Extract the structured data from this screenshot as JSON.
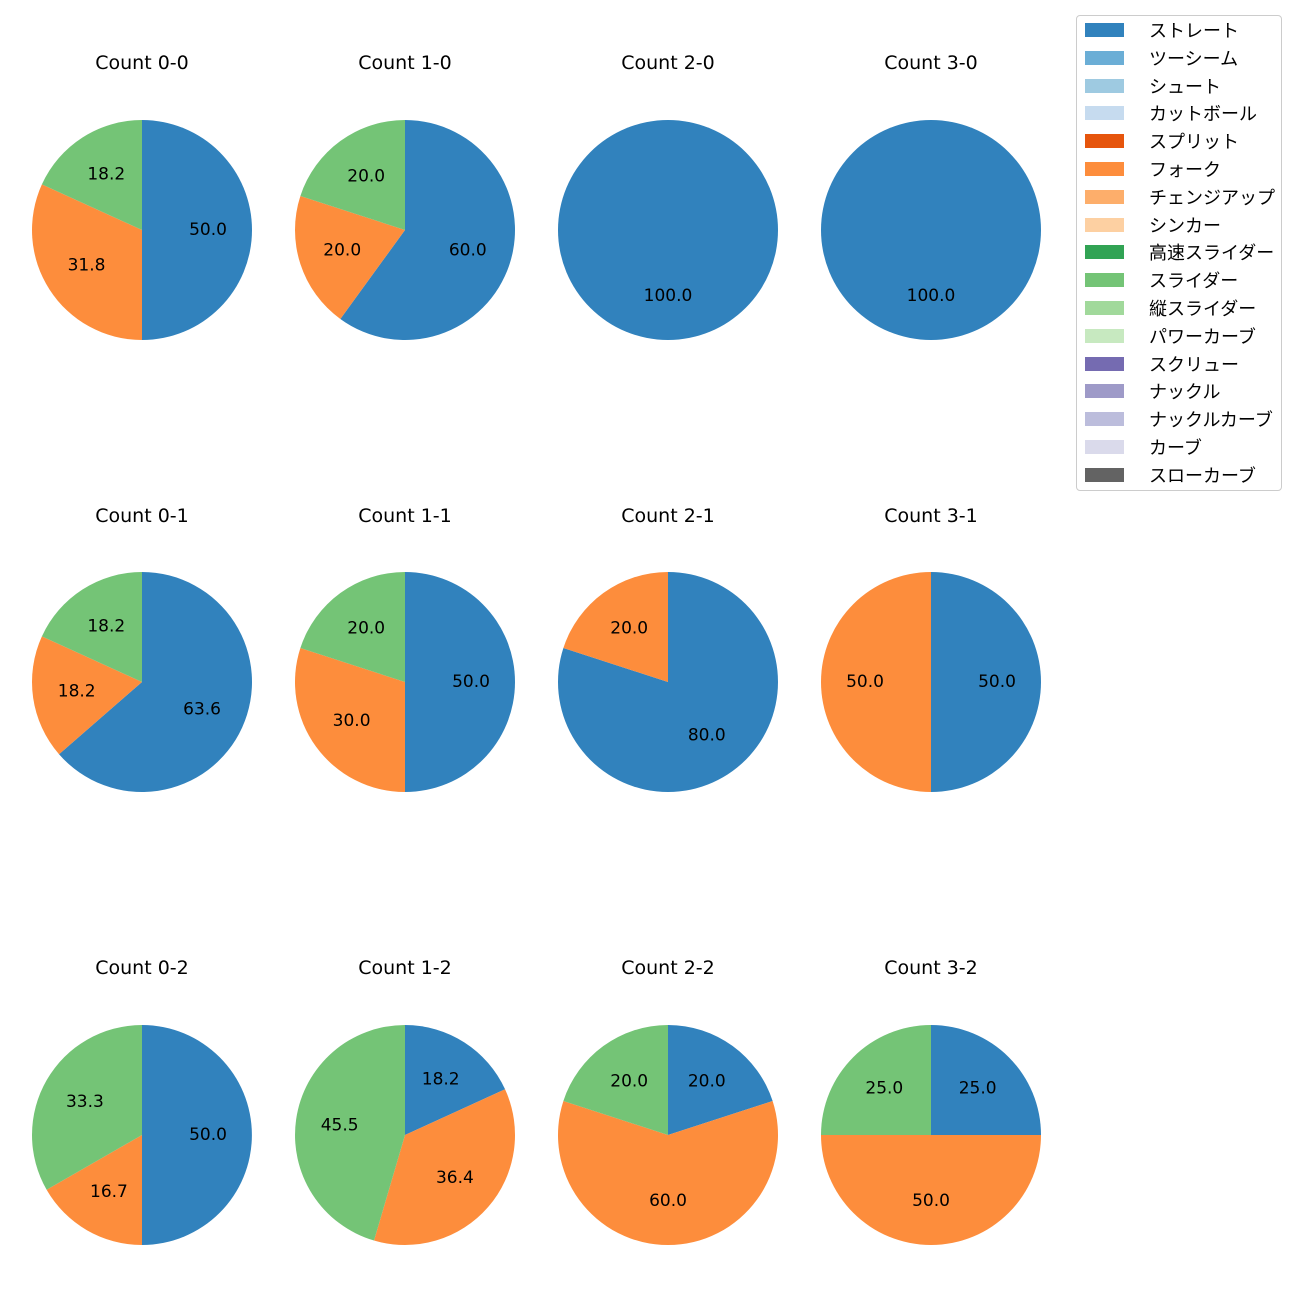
{
  "chart_data": {
    "type": "pie",
    "pitch_types": [
      {
        "name": "ストレート",
        "color": "#3182bd"
      },
      {
        "name": "ツーシーム",
        "color": "#6baed6"
      },
      {
        "name": "シュート",
        "color": "#9ecae1"
      },
      {
        "name": "カットボール",
        "color": "#c6dbef"
      },
      {
        "name": "スプリット",
        "color": "#e6550d"
      },
      {
        "name": "フォーク",
        "color": "#fd8d3c"
      },
      {
        "name": "チェンジアップ",
        "color": "#fdae6b"
      },
      {
        "name": "シンカー",
        "color": "#fdd0a2"
      },
      {
        "name": "高速スライダー",
        "color": "#31a354"
      },
      {
        "name": "スライダー",
        "color": "#74c476"
      },
      {
        "name": "縦スライダー",
        "color": "#a1d99b"
      },
      {
        "name": "パワーカーブ",
        "color": "#c7e9c0"
      },
      {
        "name": "スクリュー",
        "color": "#756bb1"
      },
      {
        "name": "ナックル",
        "color": "#9e9ac8"
      },
      {
        "name": "ナックルカーブ",
        "color": "#bcbddc"
      },
      {
        "name": "カーブ",
        "color": "#dadaeb"
      },
      {
        "name": "スローカーブ",
        "color": "#636363"
      }
    ],
    "panels": [
      {
        "title": "Count 0-0",
        "slices": [
          {
            "pitch": "ストレート",
            "value": 50.0,
            "label": "50.0"
          },
          {
            "pitch": "フォーク",
            "value": 31.8,
            "label": "31.8"
          },
          {
            "pitch": "スライダー",
            "value": 18.2,
            "label": "18.2"
          }
        ]
      },
      {
        "title": "Count 1-0",
        "slices": [
          {
            "pitch": "ストレート",
            "value": 60.0,
            "label": "60.0"
          },
          {
            "pitch": "フォーク",
            "value": 20.0,
            "label": "20.0"
          },
          {
            "pitch": "スライダー",
            "value": 20.0,
            "label": "20.0"
          }
        ]
      },
      {
        "title": "Count 2-0",
        "slices": [
          {
            "pitch": "ストレート",
            "value": 100.0,
            "label": "100.0"
          }
        ]
      },
      {
        "title": "Count 3-0",
        "slices": [
          {
            "pitch": "ストレート",
            "value": 100.0,
            "label": "100.0"
          }
        ]
      },
      {
        "title": "Count 0-1",
        "slices": [
          {
            "pitch": "ストレート",
            "value": 63.6,
            "label": "63.6"
          },
          {
            "pitch": "フォーク",
            "value": 18.2,
            "label": "18.2"
          },
          {
            "pitch": "スライダー",
            "value": 18.2,
            "label": "18.2"
          }
        ]
      },
      {
        "title": "Count 1-1",
        "slices": [
          {
            "pitch": "ストレート",
            "value": 50.0,
            "label": "50.0"
          },
          {
            "pitch": "フォーク",
            "value": 30.0,
            "label": "30.0"
          },
          {
            "pitch": "スライダー",
            "value": 20.0,
            "label": "20.0"
          }
        ]
      },
      {
        "title": "Count 2-1",
        "slices": [
          {
            "pitch": "ストレート",
            "value": 80.0,
            "label": "80.0"
          },
          {
            "pitch": "フォーク",
            "value": 20.0,
            "label": "20.0"
          }
        ]
      },
      {
        "title": "Count 3-1",
        "slices": [
          {
            "pitch": "ストレート",
            "value": 50.0,
            "label": "50.0"
          },
          {
            "pitch": "フォーク",
            "value": 50.0,
            "label": "50.0"
          }
        ]
      },
      {
        "title": "Count 0-2",
        "slices": [
          {
            "pitch": "ストレート",
            "value": 50.0,
            "label": "50.0"
          },
          {
            "pitch": "フォーク",
            "value": 16.7,
            "label": "16.7"
          },
          {
            "pitch": "スライダー",
            "value": 33.3,
            "label": "33.3"
          }
        ]
      },
      {
        "title": "Count 1-2",
        "slices": [
          {
            "pitch": "ストレート",
            "value": 18.2,
            "label": "18.2"
          },
          {
            "pitch": "フォーク",
            "value": 36.4,
            "label": "36.4"
          },
          {
            "pitch": "スライダー",
            "value": 45.5,
            "label": "45.5"
          }
        ]
      },
      {
        "title": "Count 2-2",
        "slices": [
          {
            "pitch": "ストレート",
            "value": 20.0,
            "label": "20.0"
          },
          {
            "pitch": "フォーク",
            "value": 60.0,
            "label": "60.0"
          },
          {
            "pitch": "スライダー",
            "value": 20.0,
            "label": "20.0"
          }
        ]
      },
      {
        "title": "Count 3-2",
        "slices": [
          {
            "pitch": "ストレート",
            "value": 25.0,
            "label": "25.0"
          },
          {
            "pitch": "フォーク",
            "value": 50.0,
            "label": "50.0"
          },
          {
            "pitch": "スライダー",
            "value": 25.0,
            "label": "25.0"
          }
        ]
      }
    ],
    "start_angle": "top",
    "direction": "clockwise",
    "legend_position": "top-right"
  }
}
